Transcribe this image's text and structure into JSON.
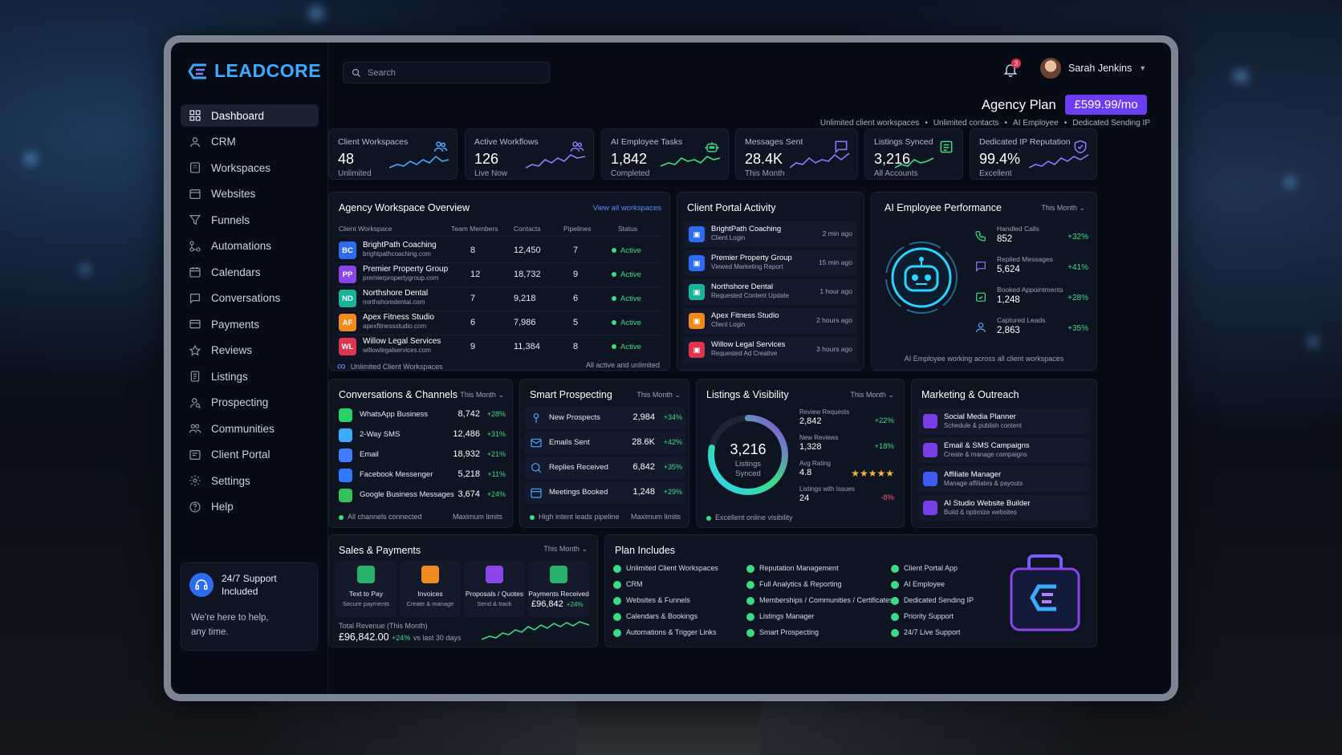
{
  "app": {
    "logo": "LEADCORE",
    "colors": {
      "accent": "#6d3df5",
      "positive": "#3ddc84",
      "negative": "#ff5a6a",
      "brand": "#3fa8ff"
    }
  },
  "search": {
    "placeholder": "Search"
  },
  "user": {
    "name": "Sarah Jenkins",
    "notifications": "3"
  },
  "plan": {
    "title": "Agency Plan",
    "price": "£599.99/mo",
    "features": [
      "Unlimited client workspaces",
      "Unlimited contacts",
      "AI Employee",
      "Dedicated Sending IP"
    ]
  },
  "sidebar": {
    "items": [
      {
        "label": "Dashboard",
        "icon": "grid-icon"
      },
      {
        "label": "CRM",
        "icon": "user-icon"
      },
      {
        "label": "Workspaces",
        "icon": "building-icon"
      },
      {
        "label": "Websites",
        "icon": "browser-icon"
      },
      {
        "label": "Funnels",
        "icon": "funnel-icon"
      },
      {
        "label": "Automations",
        "icon": "flow-icon"
      },
      {
        "label": "Calendars",
        "icon": "calendar-icon"
      },
      {
        "label": "Conversations",
        "icon": "chat-icon"
      },
      {
        "label": "Payments",
        "icon": "card-icon"
      },
      {
        "label": "Reviews",
        "icon": "star-icon"
      },
      {
        "label": "Listings",
        "icon": "list-icon"
      },
      {
        "label": "Prospecting",
        "icon": "person-search-icon"
      },
      {
        "label": "Communities",
        "icon": "group-icon"
      },
      {
        "label": "Client Portal",
        "icon": "portal-icon"
      },
      {
        "label": "Settings",
        "icon": "gear-icon"
      },
      {
        "label": "Help",
        "icon": "help-icon"
      }
    ],
    "support": {
      "title_line1": "24/7 Support",
      "title_line2": "Included",
      "text_line1": "We're here to help,",
      "text_line2": "any time."
    }
  },
  "kpis": [
    {
      "label": "Client Workspaces",
      "value": "48",
      "sub": "Unlimited",
      "icon": "users-icon"
    },
    {
      "label": "Active Workflows",
      "value": "126",
      "sub": "Live Now",
      "icon": "users-icon"
    },
    {
      "label": "AI Employee Tasks",
      "value": "1,842",
      "sub": "Completed",
      "icon": "robot-icon"
    },
    {
      "label": "Messages Sent",
      "value": "28.4K",
      "sub": "This Month",
      "icon": "chat-icon"
    },
    {
      "label": "Listings Synced",
      "value": "3,216",
      "sub": "All Accounts",
      "icon": "listing-icon"
    },
    {
      "label": "Dedicated IP Reputation",
      "value": "99.4%",
      "sub": "Excellent",
      "icon": "shield-icon"
    }
  ],
  "workspaces": {
    "title": "Agency Workspace Overview",
    "link": "View all workspaces",
    "headers": [
      "Client Workspace",
      "Team Members",
      "Contacts",
      "Pipelines",
      "Status"
    ],
    "rows": [
      {
        "abbr": "BC",
        "color": "#2d6cf0",
        "name": "BrightPath Coaching",
        "domain": "brightpathcoaching.com",
        "team": "8",
        "contacts": "12,450",
        "pipelines": "7",
        "status": "Active"
      },
      {
        "abbr": "PP",
        "color": "#8a44e8",
        "name": "Premier Property Group",
        "domain": "premierpropertygroup.com",
        "team": "12",
        "contacts": "18,732",
        "pipelines": "9",
        "status": "Active"
      },
      {
        "abbr": "ND",
        "color": "#17b39a",
        "name": "Northshore Dental",
        "domain": "northshoredental.com",
        "team": "7",
        "contacts": "9,218",
        "pipelines": "6",
        "status": "Active"
      },
      {
        "abbr": "AF",
        "color": "#f08a1c",
        "name": "Apex Fitness Studio",
        "domain": "apexfitnessstudio.com",
        "team": "6",
        "contacts": "7,986",
        "pipelines": "5",
        "status": "Active"
      },
      {
        "abbr": "WL",
        "color": "#e0334f",
        "name": "Willow Legal Services",
        "domain": "willowlegalservices.com",
        "team": "9",
        "contacts": "11,384",
        "pipelines": "8",
        "status": "Active"
      }
    ],
    "footer_left": "Unlimited Client Workspaces",
    "footer_right": "All active and unlimited"
  },
  "portal": {
    "title": "Client Portal Activity",
    "items": [
      {
        "name": "BrightPath Coaching",
        "action": "Client Login",
        "time": "2 min ago",
        "color": "#2d6cf0"
      },
      {
        "name": "Premier Property Group",
        "action": "Viewed Marketing Report",
        "time": "15 min ago",
        "color": "#2d6cf0"
      },
      {
        "name": "Northshore Dental",
        "action": "Requested Content Update",
        "time": "1 hour ago",
        "color": "#17b39a"
      },
      {
        "name": "Apex Fitness Studio",
        "action": "Client Login",
        "time": "2 hours ago",
        "color": "#f08a1c"
      },
      {
        "name": "Willow Legal Services",
        "action": "Requested Ad Creative",
        "time": "3 hours ago",
        "color": "#e0334f"
      }
    ]
  },
  "ai_perf": {
    "title": "AI Employee Performance",
    "period": "This Month",
    "metrics": [
      {
        "label": "Handled Calls",
        "value": "852",
        "change": "+32%"
      },
      {
        "label": "Replied Messages",
        "value": "5,624",
        "change": "+41%"
      },
      {
        "label": "Booked Appointments",
        "value": "1,248",
        "change": "+28%"
      },
      {
        "label": "Captured Leads",
        "value": "2,863",
        "change": "+35%"
      }
    ],
    "footer": "AI Employee working across all client workspaces"
  },
  "conversations": {
    "title": "Conversations & Channels",
    "period": "This Month",
    "channels": [
      {
        "name": "WhatsApp Business",
        "value": "8,742",
        "change": "+28%",
        "color": "#25d366"
      },
      {
        "name": "2-Way SMS",
        "value": "12,486",
        "change": "+31%",
        "color": "#3fa8ff"
      },
      {
        "name": "Email",
        "value": "18,932",
        "change": "+21%",
        "color": "#3f7cff"
      },
      {
        "name": "Facebook Messenger",
        "value": "5,218",
        "change": "+11%",
        "color": "#2f7bff"
      },
      {
        "name": "Google Business Messages",
        "value": "3,674",
        "change": "+24%",
        "color": "#34c05a"
      }
    ],
    "footer_left": "All channels connected",
    "footer_right": "Maximum limits"
  },
  "prospecting": {
    "title": "Smart Prospecting",
    "period": "This Month",
    "items": [
      {
        "name": "New Prospects",
        "value": "2,984",
        "change": "+34%"
      },
      {
        "name": "Emails Sent",
        "value": "28.6K",
        "change": "+42%"
      },
      {
        "name": "Replies Received",
        "value": "6,842",
        "change": "+35%"
      },
      {
        "name": "Meetings Booked",
        "value": "1,248",
        "change": "+29%"
      }
    ],
    "footer_left": "High intent leads pipeline",
    "footer_right": "Maximum limits"
  },
  "listings": {
    "title": "Listings & Visibility",
    "period": "This Month",
    "ring_value": "3,216",
    "ring_label1": "Listings",
    "ring_label2": "Synced",
    "ring_fraction": 0.78,
    "stats": [
      {
        "label": "Review Requests",
        "value": "2,842",
        "change": "+22%"
      },
      {
        "label": "New Reviews",
        "value": "1,328",
        "change": "+18%"
      },
      {
        "label": "Avg Rating",
        "value": "4.8",
        "change": "★★★★★"
      },
      {
        "label": "Listings with Issues",
        "value": "24",
        "change": "-8%"
      }
    ],
    "footer": "Excellent online visibility"
  },
  "marketing": {
    "title": "Marketing & Outreach",
    "items": [
      {
        "name": "Social Media Planner",
        "desc": "Schedule & publish content"
      },
      {
        "name": "Email & SMS Campaigns",
        "desc": "Create & manage campaigns"
      },
      {
        "name": "Affiliate Manager",
        "desc": "Manage affiliates & payouts"
      },
      {
        "name": "AI Studio Website Builder",
        "desc": "Build & optimize websites"
      }
    ]
  },
  "sales": {
    "title": "Sales & Payments",
    "period": "This Month",
    "tools": [
      {
        "name": "Text to Pay",
        "desc": "Secure payments",
        "color": "#27b26b"
      },
      {
        "name": "Invoices",
        "desc": "Create & manage",
        "color": "#f08a1c"
      },
      {
        "name": "Proposals / Quotes",
        "desc": "Send & track",
        "color": "#8a44e8"
      },
      {
        "name": "Payments Received",
        "desc": "£96,842",
        "change": "+24%",
        "color": "#27b26b"
      }
    ],
    "revenue_label": "Total Revenue (This Month)",
    "revenue_value": "£96,842.00",
    "revenue_change": "+24%",
    "revenue_suffix": "vs last 30 days"
  },
  "plan_includes": {
    "title": "Plan Includes",
    "columns": [
      [
        "Unlimited Client Workspaces",
        "CRM",
        "Websites & Funnels",
        "Calendars & Bookings",
        "Automations & Trigger Links"
      ],
      [
        "Reputation Management",
        "Full Analytics & Reporting",
        "Memberships / Communities / Certificates",
        "Listings Manager",
        "Smart Prospecting"
      ],
      [
        "Client Portal App",
        "AI Employee",
        "Dedicated Sending IP",
        "Priority Support",
        "24/7 Live Support"
      ]
    ]
  }
}
